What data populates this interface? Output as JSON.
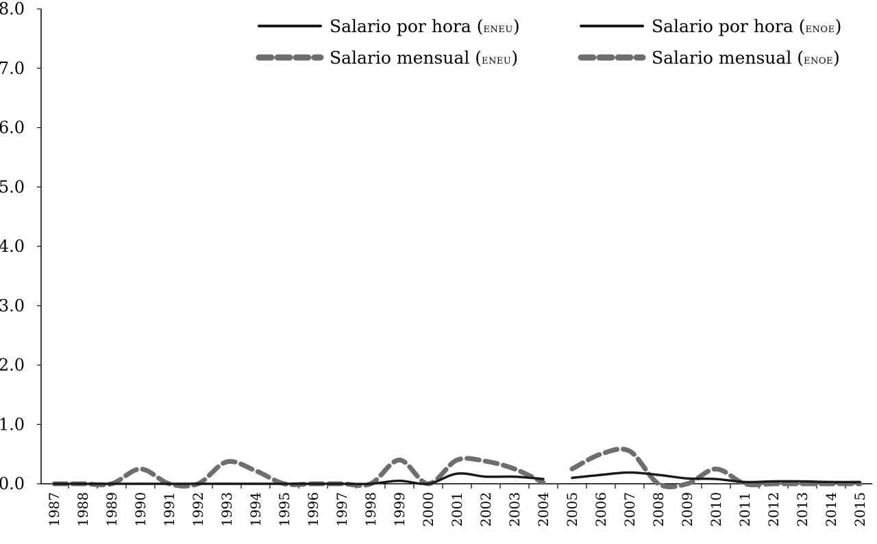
{
  "chart_data": {
    "type": "line",
    "title": "",
    "xlabel": "",
    "ylabel": "",
    "ylim": [
      0,
      8
    ],
    "y_ticks": [
      "0.0",
      "1.0",
      "2.0",
      "3.0",
      "4.0",
      "5.0",
      "6.0",
      "7.0",
      "8.0"
    ],
    "categories": [
      "1987",
      "1988",
      "1989",
      "1990",
      "1991",
      "1992",
      "1993",
      "1994",
      "1995",
      "1996",
      "1997",
      "1998",
      "1999",
      "2000",
      "2001",
      "2002",
      "2003",
      "2004",
      "2005",
      "2006",
      "2007",
      "2008",
      "2009",
      "2010",
      "2011",
      "2012",
      "2013",
      "2014",
      "2015"
    ],
    "grid": false,
    "legend_position": "top-right",
    "series": [
      {
        "name": "Salario por hora (ENEU)",
        "style": "solid",
        "color": "#1a1a1a",
        "values": [
          0.0,
          0.0,
          0.0,
          0.0,
          0.0,
          0.0,
          0.0,
          0.0,
          0.0,
          0.0,
          0.0,
          0.0,
          0.05,
          0.0,
          0.17,
          0.12,
          0.12,
          0.08,
          null,
          null,
          null,
          null,
          null,
          null,
          null,
          null,
          null,
          null,
          null
        ]
      },
      {
        "name": "Salario mensual (ENEU)",
        "style": "dashed",
        "color": "#6e6e70",
        "values": [
          0.0,
          0.0,
          0.0,
          0.25,
          0.0,
          0.0,
          0.37,
          0.22,
          0.0,
          0.0,
          0.0,
          0.0,
          0.4,
          0.0,
          0.4,
          0.38,
          0.25,
          0.02,
          null,
          null,
          null,
          null,
          null,
          null,
          null,
          null,
          null,
          null,
          null
        ]
      },
      {
        "name": "Salario por hora (ENOE)",
        "style": "solid",
        "color": "#1a1a1a",
        "values": [
          null,
          null,
          null,
          null,
          null,
          null,
          null,
          null,
          null,
          null,
          null,
          null,
          null,
          null,
          null,
          null,
          null,
          null,
          0.1,
          0.15,
          0.19,
          0.15,
          0.09,
          0.08,
          0.03,
          0.04,
          0.04,
          0.03,
          0.03
        ]
      },
      {
        "name": "Salario mensual (ENOE)",
        "style": "dashed",
        "color": "#6e6e70",
        "values": [
          null,
          null,
          null,
          null,
          null,
          null,
          null,
          null,
          null,
          null,
          null,
          null,
          null,
          null,
          null,
          null,
          null,
          null,
          0.25,
          0.5,
          0.55,
          0.0,
          0.0,
          0.25,
          0.0,
          0.0,
          0.0,
          0.0,
          0.0
        ]
      }
    ],
    "legend": [
      {
        "label": "Salario por hora (",
        "abbr": "ENEU",
        "tail": ")",
        "style": "solid"
      },
      {
        "label": "Salario por hora (",
        "abbr": "ENOE",
        "tail": ")",
        "style": "solid"
      },
      {
        "label": "Salario mensual (",
        "abbr": "ENEU",
        "tail": ")",
        "style": "dashed"
      },
      {
        "label": "Salario mensual (",
        "abbr": "ENOE",
        "tail": ")",
        "style": "dashed"
      }
    ]
  }
}
